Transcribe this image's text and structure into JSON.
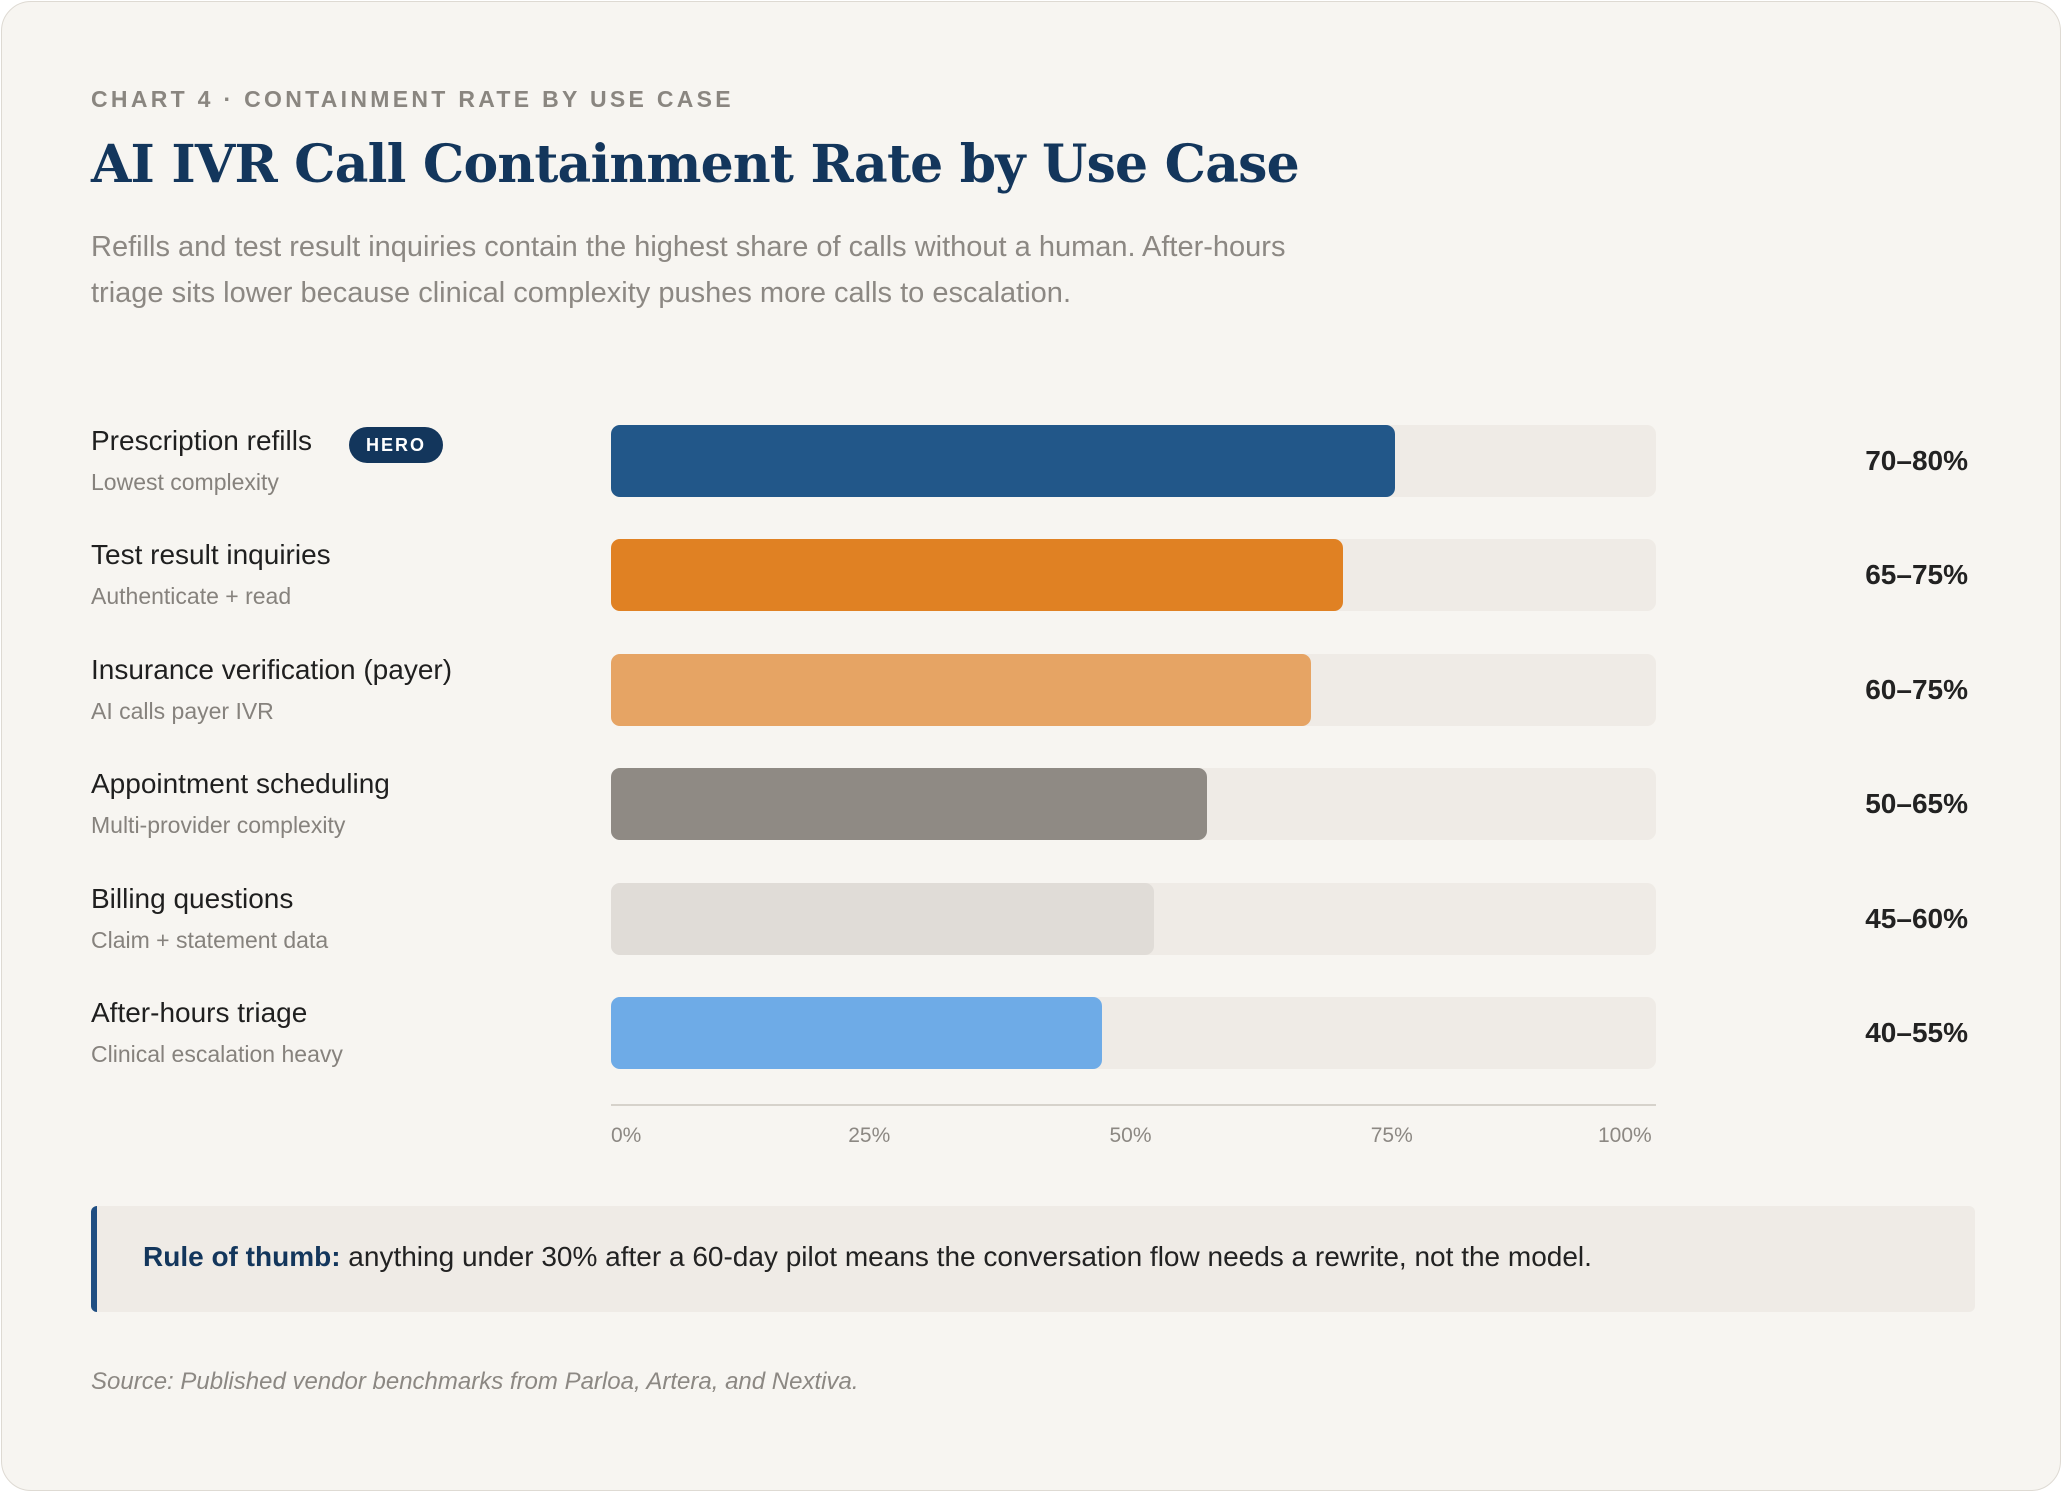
{
  "header": {
    "eyebrow": "CHART 4 · CONTAINMENT RATE BY USE CASE",
    "title": "AI IVR Call Containment Rate by Use Case",
    "subtitle": "Refills and test result inquiries contain the highest share of calls without a human. After-hours triage sits lower because clinical complexity pushes more calls to escalation."
  },
  "hero_badge": "HERO",
  "chart_data": {
    "type": "bar",
    "orientation": "horizontal",
    "categories": [
      "Prescription refills",
      "Test result inquiries",
      "Insurance verification (payer)",
      "Appointment scheduling",
      "Billing questions",
      "After-hours triage"
    ],
    "subcategories": [
      "Lowest complexity",
      "Authenticate + read",
      "AI calls payer IVR",
      "Multi-provider complexity",
      "Claim + statement data",
      "Clinical escalation heavy"
    ],
    "value_labels": [
      "70–80%",
      "65–75%",
      "60–75%",
      "50–65%",
      "45–60%",
      "40–55%"
    ],
    "values": [
      75,
      70,
      67,
      57,
      52,
      47
    ],
    "colors": [
      "#225789",
      "#e08123",
      "#e6a464",
      "#8f8a84",
      "#e0dcd7",
      "#6eabe7"
    ],
    "xlim": [
      0,
      100
    ],
    "x_ticks": [
      "0%",
      "25%",
      "50%",
      "75%",
      "100%"
    ],
    "grid": false,
    "legend": "none"
  },
  "callout": {
    "label": "Rule of thumb:",
    "text": " anything under 30% after a 60-day pilot means the conversation flow needs a rewrite, not the model.",
    "accent_color": "#1f4e82"
  },
  "source": "Source: Published vendor benchmarks from Parloa, Artera, and Nextiva."
}
